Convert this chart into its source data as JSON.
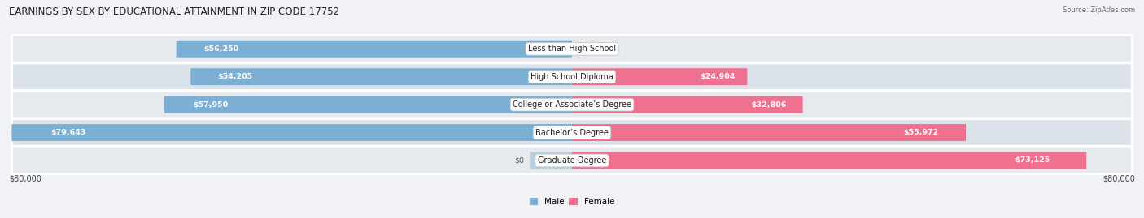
{
  "title": "EARNINGS BY SEX BY EDUCATIONAL ATTAINMENT IN ZIP CODE 17752",
  "source": "Source: ZipAtlas.com",
  "categories": [
    "Less than High School",
    "High School Diploma",
    "College or Associate’s Degree",
    "Bachelor’s Degree",
    "Graduate Degree"
  ],
  "male_values": [
    56250,
    54205,
    57950,
    79643,
    0
  ],
  "female_values": [
    0,
    24904,
    32806,
    55972,
    73125
  ],
  "male_color": "#7bafd4",
  "female_color": "#f07090",
  "male_color_light": "#b8cfdf",
  "max_value": 80000,
  "xlabel_left": "$80,000",
  "xlabel_right": "$80,000",
  "bar_height": 0.6,
  "bg_color": "#f0f2f5",
  "row_bg_even": "#e6eaef",
  "row_bg_odd": "#dce2ea",
  "title_fontsize": 8.5,
  "label_fontsize": 7.0,
  "value_fontsize": 6.8,
  "legend_fontsize": 7.5,
  "source_fontsize": 6.0
}
